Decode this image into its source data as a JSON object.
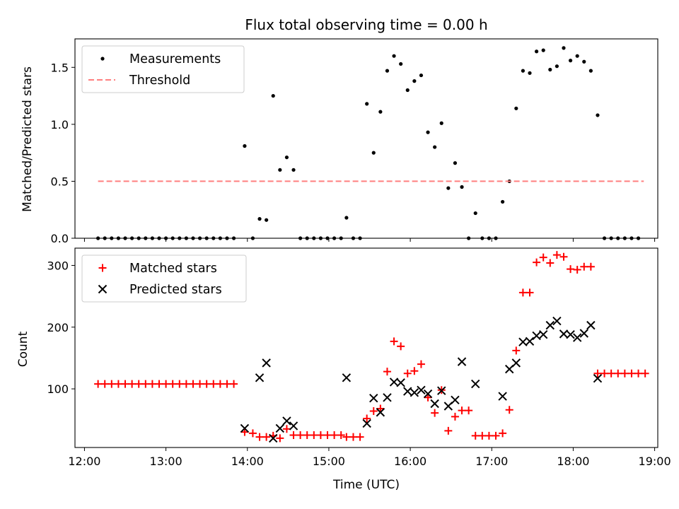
{
  "chart_data": [
    {
      "type": "scatter",
      "title": "Flux total observing time = 0.00 h",
      "xlabel": "",
      "ylabel": "Matched/Predicted stars",
      "xlim": [
        "12:00",
        "19:00"
      ],
      "ylim": [
        0,
        1.75
      ],
      "yticks": [
        "0.0",
        "0.5",
        "1.0",
        "1.5"
      ],
      "xticks": [
        "12:00",
        "13:00",
        "14:00",
        "15:00",
        "16:00",
        "17:00",
        "18:00",
        "19:00"
      ],
      "show_x_tick_labels": false,
      "grid": false,
      "legend_placement": "upper-left",
      "colors": {
        "measurements": "#000000",
        "threshold": "#ff7f7f"
      },
      "series": [
        {
          "name": "Measurements",
          "marker": "dot",
          "points": [
            {
              "x": "12:10",
              "y": 0
            },
            {
              "x": "12:15",
              "y": 0
            },
            {
              "x": "12:20",
              "y": 0
            },
            {
              "x": "12:25",
              "y": 0
            },
            {
              "x": "12:30",
              "y": 0
            },
            {
              "x": "12:35",
              "y": 0
            },
            {
              "x": "12:40",
              "y": 0
            },
            {
              "x": "12:45",
              "y": 0
            },
            {
              "x": "12:50",
              "y": 0
            },
            {
              "x": "12:55",
              "y": 0
            },
            {
              "x": "13:00",
              "y": 0
            },
            {
              "x": "13:05",
              "y": 0
            },
            {
              "x": "13:10",
              "y": 0
            },
            {
              "x": "13:15",
              "y": 0
            },
            {
              "x": "13:20",
              "y": 0
            },
            {
              "x": "13:25",
              "y": 0
            },
            {
              "x": "13:30",
              "y": 0
            },
            {
              "x": "13:35",
              "y": 0
            },
            {
              "x": "13:40",
              "y": 0
            },
            {
              "x": "13:45",
              "y": 0
            },
            {
              "x": "13:50",
              "y": 0
            },
            {
              "x": "13:58",
              "y": 0.81
            },
            {
              "x": "14:04",
              "y": 0
            },
            {
              "x": "14:09",
              "y": 0.17
            },
            {
              "x": "14:14",
              "y": 0.16
            },
            {
              "x": "14:19",
              "y": 1.25
            },
            {
              "x": "14:24",
              "y": 0.6
            },
            {
              "x": "14:29",
              "y": 0.71
            },
            {
              "x": "14:34",
              "y": 0.6
            },
            {
              "x": "14:39",
              "y": 0
            },
            {
              "x": "14:44",
              "y": 0
            },
            {
              "x": "14:49",
              "y": 0
            },
            {
              "x": "14:54",
              "y": 0
            },
            {
              "x": "14:59",
              "y": 0
            },
            {
              "x": "15:04",
              "y": 0
            },
            {
              "x": "15:09",
              "y": 0
            },
            {
              "x": "15:13",
              "y": 0.18
            },
            {
              "x": "15:18",
              "y": 0
            },
            {
              "x": "15:23",
              "y": 0
            },
            {
              "x": "15:28",
              "y": 1.18
            },
            {
              "x": "15:33",
              "y": 0.75
            },
            {
              "x": "15:38",
              "y": 1.11
            },
            {
              "x": "15:43",
              "y": 1.47
            },
            {
              "x": "15:48",
              "y": 1.6
            },
            {
              "x": "15:53",
              "y": 1.53
            },
            {
              "x": "15:58",
              "y": 1.3
            },
            {
              "x": "16:03",
              "y": 1.38
            },
            {
              "x": "16:08",
              "y": 1.43
            },
            {
              "x": "16:13",
              "y": 0.93
            },
            {
              "x": "16:18",
              "y": 0.8
            },
            {
              "x": "16:23",
              "y": 1.01
            },
            {
              "x": "16:28",
              "y": 0.44
            },
            {
              "x": "16:33",
              "y": 0.66
            },
            {
              "x": "16:38",
              "y": 0.45
            },
            {
              "x": "16:43",
              "y": 0
            },
            {
              "x": "16:48",
              "y": 0.22
            },
            {
              "x": "16:53",
              "y": 0
            },
            {
              "x": "16:58",
              "y": 0
            },
            {
              "x": "17:03",
              "y": 0
            },
            {
              "x": "17:08",
              "y": 0.32
            },
            {
              "x": "17:13",
              "y": 0.5
            },
            {
              "x": "17:18",
              "y": 1.14
            },
            {
              "x": "17:23",
              "y": 1.47
            },
            {
              "x": "17:28",
              "y": 1.45
            },
            {
              "x": "17:33",
              "y": 1.64
            },
            {
              "x": "17:38",
              "y": 1.65
            },
            {
              "x": "17:43",
              "y": 1.48
            },
            {
              "x": "17:48",
              "y": 1.51
            },
            {
              "x": "17:53",
              "y": 1.67
            },
            {
              "x": "17:58",
              "y": 1.56
            },
            {
              "x": "18:03",
              "y": 1.6
            },
            {
              "x": "18:08",
              "y": 1.55
            },
            {
              "x": "18:13",
              "y": 1.47
            },
            {
              "x": "18:18",
              "y": 1.08
            },
            {
              "x": "18:23",
              "y": 0
            },
            {
              "x": "18:28",
              "y": 0
            },
            {
              "x": "18:33",
              "y": 0
            },
            {
              "x": "18:38",
              "y": 0
            },
            {
              "x": "18:43",
              "y": 0
            },
            {
              "x": "18:48",
              "y": 0
            }
          ]
        },
        {
          "name": "Threshold",
          "type": "line",
          "style": "dashed",
          "points": [
            {
              "x": "12:10",
              "y": 0.5
            },
            {
              "x": "18:52",
              "y": 0.5
            }
          ]
        }
      ]
    },
    {
      "type": "scatter",
      "title": "",
      "xlabel": "Time (UTC)",
      "ylabel": "Count",
      "xlim": [
        "12:00",
        "19:00"
      ],
      "ylim": [
        5,
        328
      ],
      "yticks": [
        "100",
        "200",
        "300"
      ],
      "xticks": [
        "12:00",
        "13:00",
        "14:00",
        "15:00",
        "16:00",
        "17:00",
        "18:00",
        "19:00"
      ],
      "grid": false,
      "legend_placement": "upper-left",
      "colors": {
        "matched": "#ff0000",
        "predicted": "#000000"
      },
      "series": [
        {
          "name": "Matched stars",
          "marker": "plus",
          "points": [
            {
              "x": "12:10",
              "y": 108
            },
            {
              "x": "12:15",
              "y": 108
            },
            {
              "x": "12:20",
              "y": 108
            },
            {
              "x": "12:25",
              "y": 108
            },
            {
              "x": "12:30",
              "y": 108
            },
            {
              "x": "12:35",
              "y": 108
            },
            {
              "x": "12:40",
              "y": 108
            },
            {
              "x": "12:45",
              "y": 108
            },
            {
              "x": "12:50",
              "y": 108
            },
            {
              "x": "12:55",
              "y": 108
            },
            {
              "x": "13:00",
              "y": 108
            },
            {
              "x": "13:05",
              "y": 108
            },
            {
              "x": "13:10",
              "y": 108
            },
            {
              "x": "13:15",
              "y": 108
            },
            {
              "x": "13:20",
              "y": 108
            },
            {
              "x": "13:25",
              "y": 108
            },
            {
              "x": "13:30",
              "y": 108
            },
            {
              "x": "13:35",
              "y": 108
            },
            {
              "x": "13:40",
              "y": 108
            },
            {
              "x": "13:45",
              "y": 108
            },
            {
              "x": "13:50",
              "y": 108
            },
            {
              "x": "13:58",
              "y": 30
            },
            {
              "x": "14:04",
              "y": 28
            },
            {
              "x": "14:09",
              "y": 22
            },
            {
              "x": "14:14",
              "y": 22
            },
            {
              "x": "14:19",
              "y": 24
            },
            {
              "x": "14:24",
              "y": 20
            },
            {
              "x": "14:29",
              "y": 35
            },
            {
              "x": "14:34",
              "y": 25
            },
            {
              "x": "14:39",
              "y": 25
            },
            {
              "x": "14:44",
              "y": 25
            },
            {
              "x": "14:49",
              "y": 25
            },
            {
              "x": "14:54",
              "y": 25
            },
            {
              "x": "14:59",
              "y": 25
            },
            {
              "x": "15:04",
              "y": 25
            },
            {
              "x": "15:09",
              "y": 25
            },
            {
              "x": "15:13",
              "y": 22
            },
            {
              "x": "15:18",
              "y": 22
            },
            {
              "x": "15:23",
              "y": 22
            },
            {
              "x": "15:28",
              "y": 52
            },
            {
              "x": "15:33",
              "y": 64
            },
            {
              "x": "15:38",
              "y": 68
            },
            {
              "x": "15:43",
              "y": 128
            },
            {
              "x": "15:48",
              "y": 177
            },
            {
              "x": "15:53",
              "y": 169
            },
            {
              "x": "15:58",
              "y": 125
            },
            {
              "x": "16:03",
              "y": 129
            },
            {
              "x": "16:08",
              "y": 140
            },
            {
              "x": "16:13",
              "y": 86
            },
            {
              "x": "16:18",
              "y": 61
            },
            {
              "x": "16:23",
              "y": 98
            },
            {
              "x": "16:28",
              "y": 32
            },
            {
              "x": "16:33",
              "y": 55
            },
            {
              "x": "16:38",
              "y": 65
            },
            {
              "x": "16:43",
              "y": 65
            },
            {
              "x": "16:48",
              "y": 24
            },
            {
              "x": "16:53",
              "y": 24
            },
            {
              "x": "16:58",
              "y": 24
            },
            {
              "x": "17:03",
              "y": 24
            },
            {
              "x": "17:08",
              "y": 28
            },
            {
              "x": "17:13",
              "y": 66
            },
            {
              "x": "17:18",
              "y": 162
            },
            {
              "x": "17:23",
              "y": 256
            },
            {
              "x": "17:28",
              "y": 256
            },
            {
              "x": "17:33",
              "y": 305
            },
            {
              "x": "17:38",
              "y": 313
            },
            {
              "x": "17:43",
              "y": 304
            },
            {
              "x": "17:48",
              "y": 317
            },
            {
              "x": "17:53",
              "y": 314
            },
            {
              "x": "17:58",
              "y": 294
            },
            {
              "x": "18:03",
              "y": 293
            },
            {
              "x": "18:08",
              "y": 298
            },
            {
              "x": "18:13",
              "y": 298
            },
            {
              "x": "18:18",
              "y": 125
            },
            {
              "x": "18:23",
              "y": 125
            },
            {
              "x": "18:28",
              "y": 125
            },
            {
              "x": "18:33",
              "y": 125
            },
            {
              "x": "18:38",
              "y": 125
            },
            {
              "x": "18:43",
              "y": 125
            },
            {
              "x": "18:48",
              "y": 125
            },
            {
              "x": "18:53",
              "y": 125
            }
          ]
        },
        {
          "name": "Predicted stars",
          "marker": "x",
          "points": [
            {
              "x": "13:58",
              "y": 36
            },
            {
              "x": "14:09",
              "y": 118
            },
            {
              "x": "14:14",
              "y": 142
            },
            {
              "x": "14:19",
              "y": 20
            },
            {
              "x": "14:24",
              "y": 36
            },
            {
              "x": "14:29",
              "y": 48
            },
            {
              "x": "14:34",
              "y": 40
            },
            {
              "x": "15:13",
              "y": 118
            },
            {
              "x": "15:28",
              "y": 44
            },
            {
              "x": "15:33",
              "y": 85
            },
            {
              "x": "15:38",
              "y": 62
            },
            {
              "x": "15:43",
              "y": 86
            },
            {
              "x": "15:48",
              "y": 111
            },
            {
              "x": "15:53",
              "y": 110
            },
            {
              "x": "15:58",
              "y": 96
            },
            {
              "x": "16:03",
              "y": 94
            },
            {
              "x": "16:08",
              "y": 98
            },
            {
              "x": "16:13",
              "y": 92
            },
            {
              "x": "16:18",
              "y": 76
            },
            {
              "x": "16:23",
              "y": 97
            },
            {
              "x": "16:28",
              "y": 72
            },
            {
              "x": "16:33",
              "y": 82
            },
            {
              "x": "16:38",
              "y": 144
            },
            {
              "x": "16:48",
              "y": 108
            },
            {
              "x": "17:08",
              "y": 88
            },
            {
              "x": "17:13",
              "y": 132
            },
            {
              "x": "17:18",
              "y": 142
            },
            {
              "x": "17:23",
              "y": 176
            },
            {
              "x": "17:28",
              "y": 177
            },
            {
              "x": "17:33",
              "y": 186
            },
            {
              "x": "17:38",
              "y": 188
            },
            {
              "x": "17:43",
              "y": 203
            },
            {
              "x": "17:48",
              "y": 210
            },
            {
              "x": "17:53",
              "y": 189
            },
            {
              "x": "17:58",
              "y": 188
            },
            {
              "x": "18:03",
              "y": 183
            },
            {
              "x": "18:08",
              "y": 190
            },
            {
              "x": "18:13",
              "y": 203
            },
            {
              "x": "18:18",
              "y": 117
            }
          ]
        }
      ]
    }
  ]
}
